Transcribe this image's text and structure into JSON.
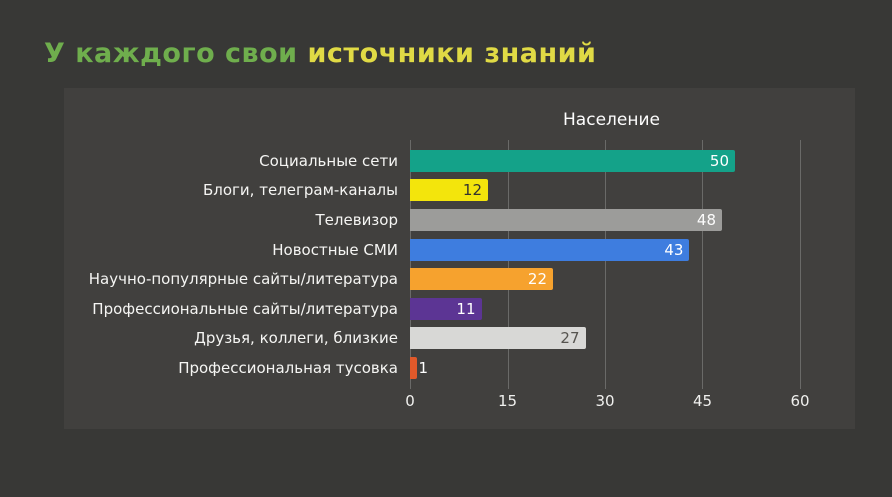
{
  "page": {
    "title_part1": "У каждого свои ",
    "title_part2": "источники знаний",
    "title_color1": "#6fae4d",
    "title_color2": "#e0da45"
  },
  "chart_data": {
    "type": "bar",
    "orientation": "horizontal",
    "title": "Население",
    "categories": [
      "Социальные сети",
      "Блоги, телеграм-каналы",
      "Телевизор",
      "Новостные СМИ",
      "Научно-популярные сайты/литература",
      "Профессиональные сайты/литература",
      "Друзья, коллеги, близкие",
      "Профессиональная тусовка"
    ],
    "values": [
      50,
      12,
      48,
      43,
      22,
      11,
      27,
      1
    ],
    "bar_colors": [
      "#14a289",
      "#f3e50c",
      "#9c9c9a",
      "#3e7ddf",
      "#f6a22e",
      "#5c3594",
      "#d8d8d6",
      "#e0592a"
    ],
    "value_label_colors": [
      "#ffffff",
      "#33322f",
      "#fcfcfc",
      "#ffffff",
      "#ffffff",
      "#ffffff",
      "#56544f",
      "#ffffff"
    ],
    "x_ticks": [
      0,
      15,
      30,
      45,
      60
    ],
    "xlim": [
      0,
      62
    ],
    "grid": true,
    "legend": false
  }
}
